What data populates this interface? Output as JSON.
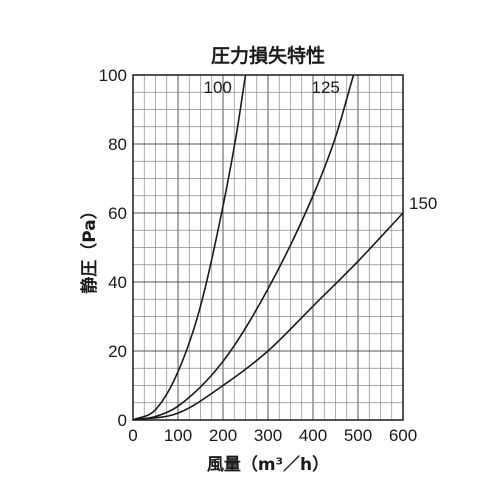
{
  "chart_data": {
    "type": "line",
    "title": "圧力損失特性",
    "xlabel": "風量（m³／h）",
    "ylabel": "静圧（Pa）",
    "xlim": [
      0,
      600
    ],
    "ylim": [
      0,
      100
    ],
    "xticks": [
      0,
      100,
      200,
      300,
      400,
      500,
      600
    ],
    "yticks": [
      0,
      20,
      40,
      60,
      80,
      100
    ],
    "grid": true,
    "series": [
      {
        "name": "100",
        "x": [
          0,
          50,
          100,
          150,
          200,
          230,
          250
        ],
        "y": [
          0,
          3,
          14,
          33,
          62,
          83,
          100
        ]
      },
      {
        "name": "125",
        "x": [
          0,
          50,
          100,
          200,
          300,
          400,
          450,
          490
        ],
        "y": [
          0,
          1,
          4,
          17,
          38,
          65,
          82,
          100
        ]
      },
      {
        "name": "150",
        "x": [
          0,
          100,
          200,
          300,
          400,
          500,
          600
        ],
        "y": [
          0,
          2,
          10,
          20,
          33,
          46,
          60
        ]
      }
    ]
  }
}
